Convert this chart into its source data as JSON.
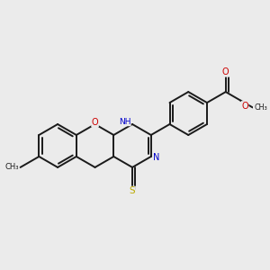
{
  "bg_color": "#ebebeb",
  "bond_color": "#1a1a1a",
  "bond_width": 1.4,
  "ao": 0.07,
  "atom_colors": {
    "O": "#cc0000",
    "N": "#0000cc",
    "S": "#bbaa00",
    "C": "#1a1a1a"
  },
  "figsize": [
    3.0,
    3.0
  ],
  "dpi": 100,
  "xlim": [
    -2.8,
    3.2
  ],
  "ylim": [
    -2.2,
    2.2
  ]
}
